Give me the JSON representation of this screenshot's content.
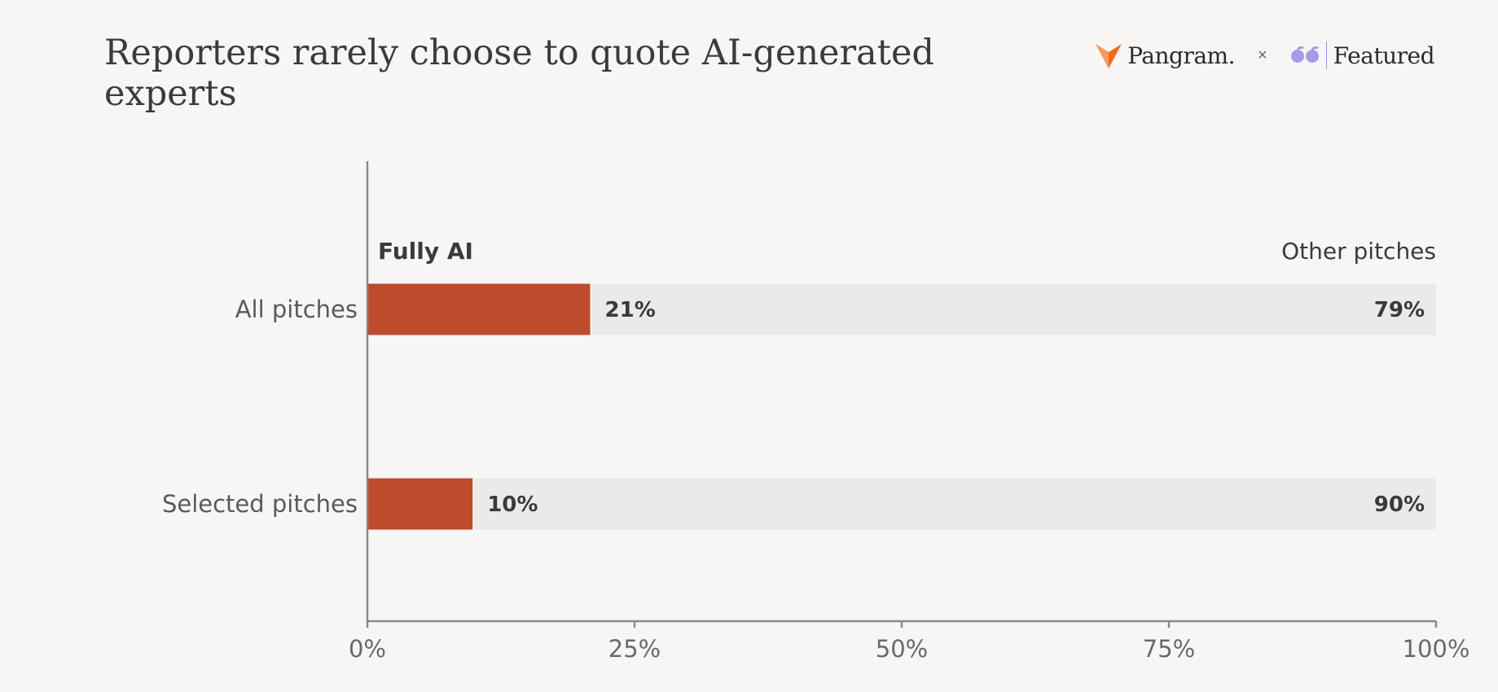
{
  "title": "Reporters rarely choose to quote AI-generated experts",
  "logos": {
    "brand1": "Pangram.",
    "separator": "×",
    "brand2": "Featured"
  },
  "colors": {
    "ai": "#bd4b2c",
    "other": "#ebeae8",
    "axis": "#8a8a8a",
    "text": "#3a3a3a",
    "pangram_orange": "#f46a1f",
    "featured_purple": "#a79ae8"
  },
  "chart_data": {
    "type": "bar",
    "orientation": "horizontal",
    "stacked": true,
    "categories": [
      "All pitches",
      "Selected pitches"
    ],
    "series": [
      {
        "name": "Fully AI",
        "values": [
          21,
          10
        ],
        "labels": [
          "21%",
          "10%"
        ]
      },
      {
        "name": "Other pitches",
        "values": [
          79,
          90
        ],
        "labels": [
          "79%",
          "90%"
        ]
      }
    ],
    "xlim": [
      0,
      100
    ],
    "xticks": [
      "0%",
      "25%",
      "50%",
      "75%",
      "100%"
    ],
    "grid": false
  }
}
